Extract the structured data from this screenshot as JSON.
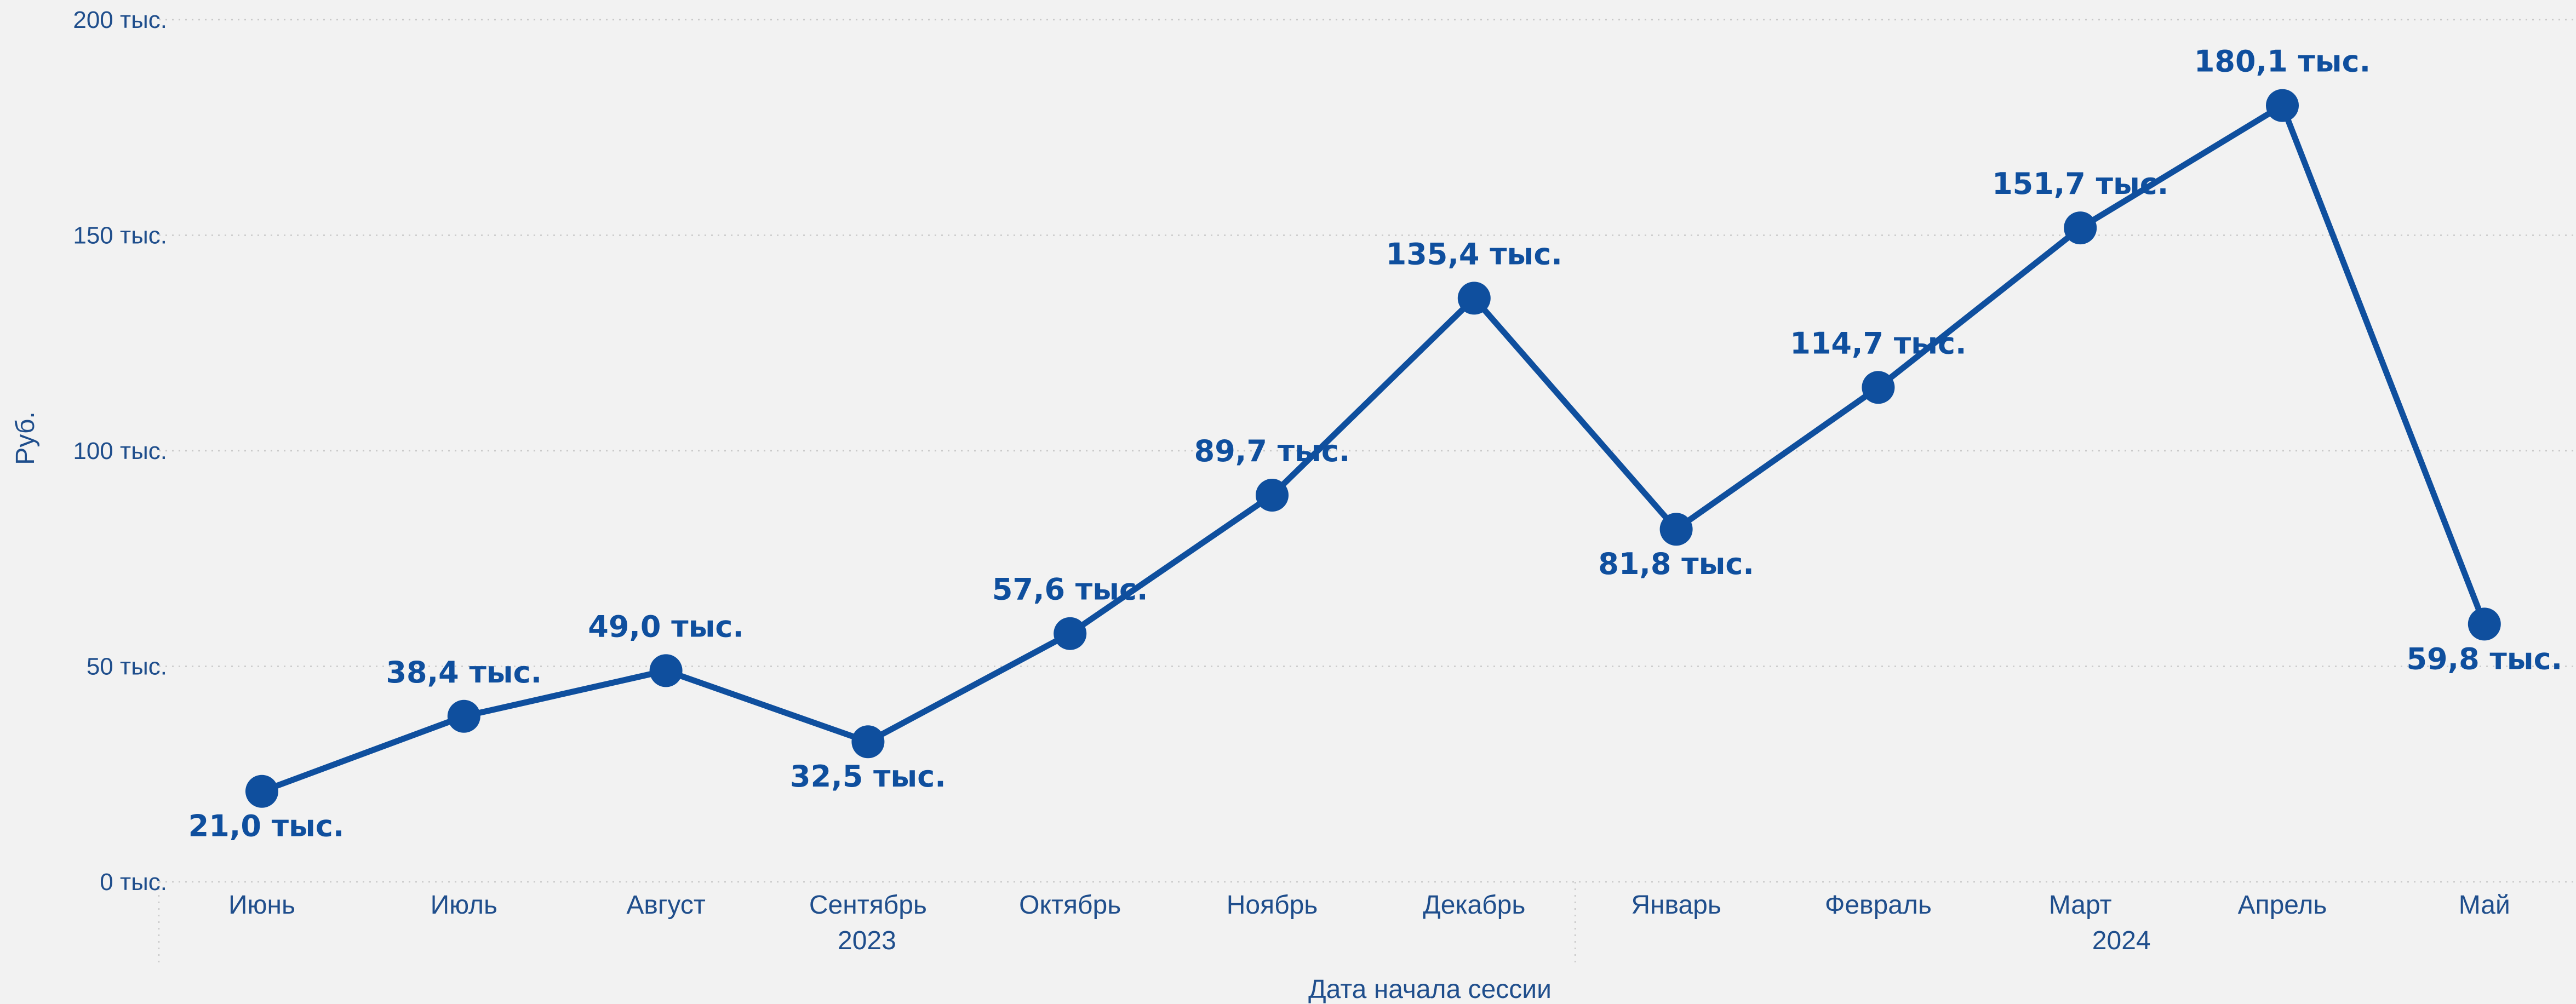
{
  "chart_data": {
    "type": "line",
    "title": "",
    "xlabel": "Дата начала сессии",
    "ylabel": "Руб.",
    "ylim": [
      0,
      200000
    ],
    "yticks": [
      0,
      50000,
      100000,
      150000,
      200000
    ],
    "ytick_labels": [
      "0 тыс.",
      "50 тыс.",
      "100 тыс.",
      "150 тыс.",
      "200 тыс."
    ],
    "grid": true,
    "legend": "none",
    "color": "#0f4f9e",
    "categories": [
      "Июнь",
      "Июль",
      "Август",
      "Сентябрь",
      "Октябрь",
      "Ноябрь",
      "Декабрь",
      "Январь",
      "Февраль",
      "Март",
      "Апрель",
      "Май"
    ],
    "year_groups": [
      {
        "label": "2023",
        "from": 0,
        "to": 6
      },
      {
        "label": "2024",
        "from": 7,
        "to": 11
      }
    ],
    "series": [
      {
        "values": [
          21000,
          38400,
          49000,
          32500,
          57600,
          89700,
          135400,
          81800,
          114700,
          151700,
          180100,
          59800
        ],
        "labels": [
          "21,0 тыс.",
          "38,4 тыс.",
          "49,0 тыс.",
          "32,5 тыс.",
          "57,6 тыс.",
          "89,7 тыс.",
          "135,4 тыс.",
          "81,8 тыс.",
          "114,7 тыс.",
          "151,7 тыс.",
          "180,1 тыс.",
          "59,8 тыс."
        ],
        "label_positions": [
          "below",
          "above",
          "above",
          "below",
          "above",
          "above",
          "above",
          "below",
          "above",
          "above",
          "above",
          "below"
        ]
      }
    ]
  }
}
